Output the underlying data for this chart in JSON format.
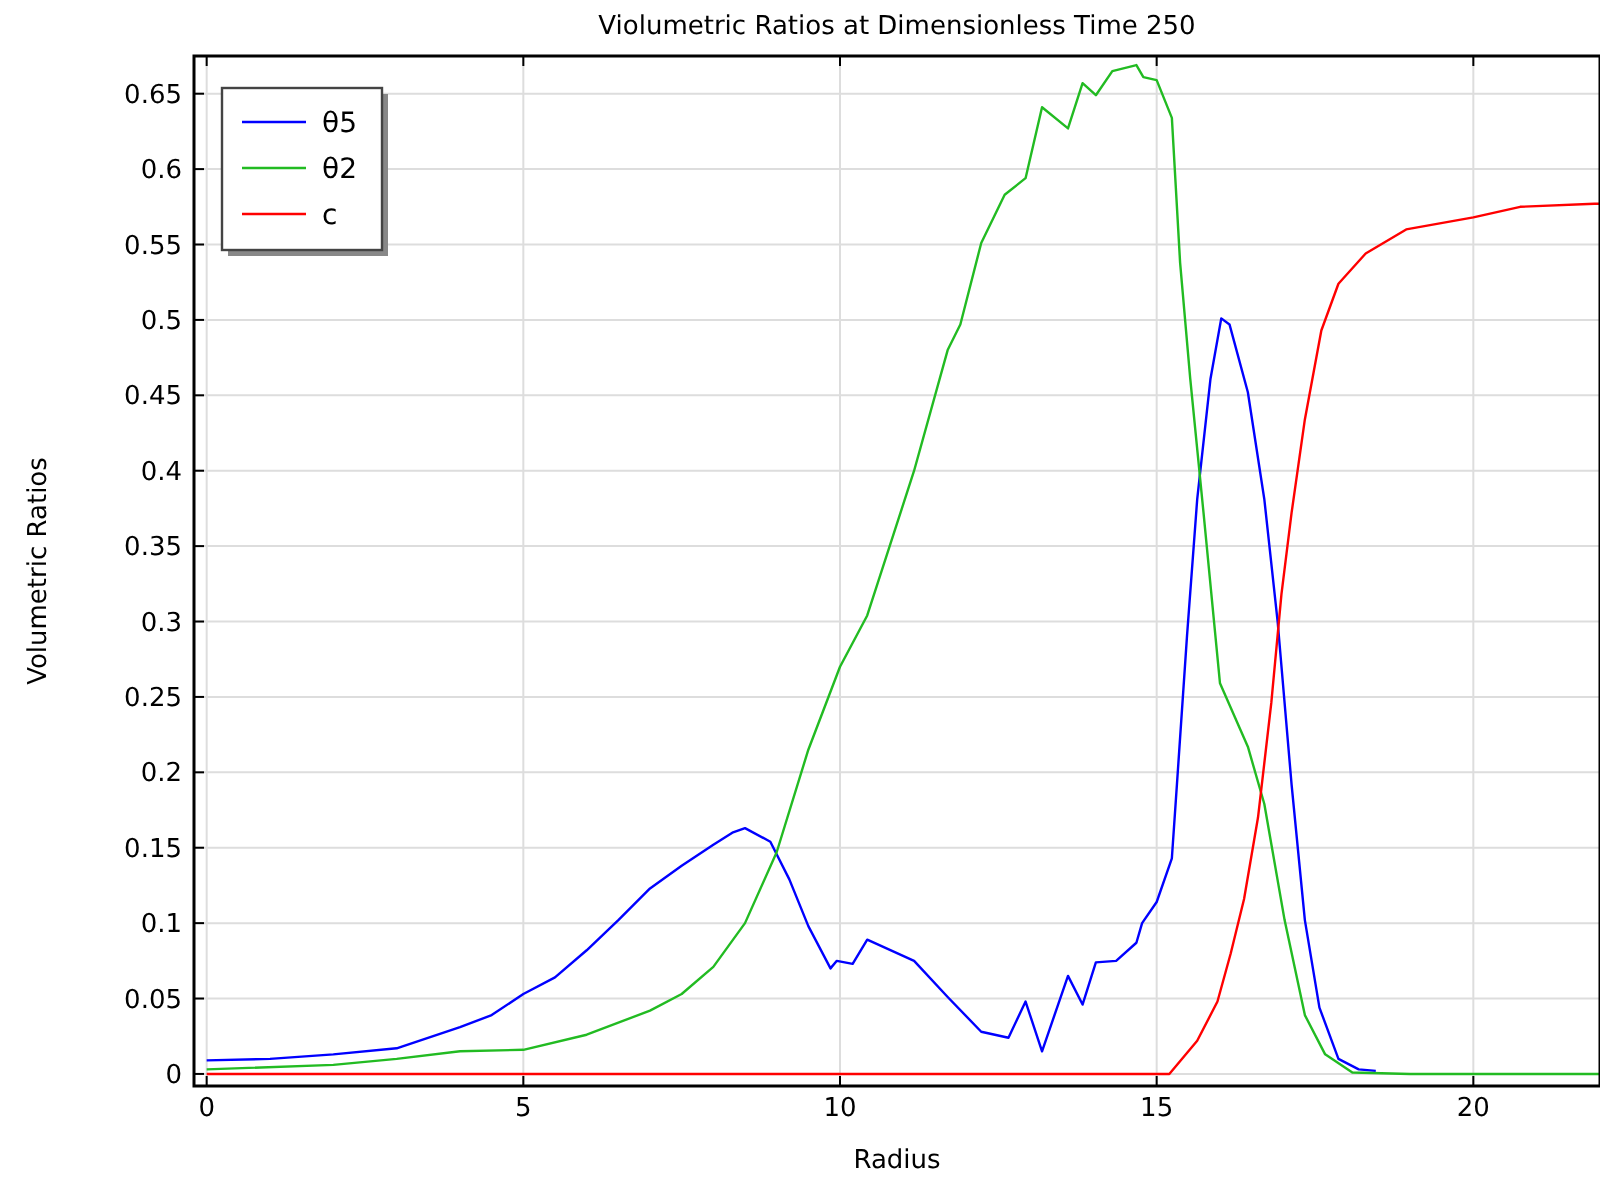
{
  "chart_data": {
    "type": "line",
    "title": "Violumetric Ratios at Dimensionless Time 250",
    "xlabel": "Radius",
    "ylabel": "Volumetric Ratios",
    "xlim": [
      -0.2,
      22
    ],
    "ylim": [
      -0.008,
      0.675
    ],
    "xticks": [
      0,
      5,
      10,
      15,
      20
    ],
    "yticks": [
      0,
      0.05,
      0.1,
      0.15,
      0.2,
      0.25,
      0.3,
      0.35,
      0.4,
      0.45,
      0.5,
      0.55,
      0.6,
      0.65
    ],
    "grid": true,
    "legend": "top left",
    "line_style": "solid",
    "marker": "none",
    "series": [
      {
        "name": "θ5",
        "color": "#0000ff",
        "x": [
          0,
          1,
          2,
          3,
          4,
          4.5,
          5,
          5.5,
          6,
          6.5,
          7,
          7.5,
          8,
          8.3,
          8.5,
          8.9,
          9.2,
          9.5,
          9.85,
          9.95,
          10.2,
          10.43,
          11.17,
          11.7,
          12.23,
          12.66,
          12.93,
          13.19,
          13.6,
          13.83,
          14.04,
          14.36,
          14.68,
          14.77,
          15,
          15.24,
          15.32,
          15.48,
          15.64,
          15.85,
          16.02,
          16.15,
          16.44,
          16.7,
          16.91,
          17.13,
          17.34,
          17.57,
          17.87,
          18.19,
          18.46
        ],
        "values": [
          0.009,
          0.01,
          0.013,
          0.017,
          0.031,
          0.039,
          0.053,
          0.064,
          0.082,
          0.102,
          0.123,
          0.138,
          0.152,
          0.16,
          0.163,
          0.154,
          0.129,
          0.098,
          0.07,
          0.075,
          0.073,
          0.089,
          0.075,
          0.051,
          0.028,
          0.024,
          0.048,
          0.015,
          0.065,
          0.046,
          0.074,
          0.075,
          0.087,
          0.1,
          0.114,
          0.143,
          0.192,
          0.291,
          0.381,
          0.461,
          0.501,
          0.497,
          0.452,
          0.381,
          0.3,
          0.192,
          0.102,
          0.044,
          0.01,
          0.003,
          0.002
        ]
      },
      {
        "name": "θ2",
        "color": "#22bb22",
        "x": [
          0,
          2,
          3,
          4,
          5,
          6,
          7,
          7.5,
          8,
          8.5,
          9,
          9.5,
          10,
          10.43,
          11.17,
          11.7,
          11.9,
          12.23,
          12.6,
          12.93,
          13.19,
          13.6,
          13.83,
          14.04,
          14.3,
          14.68,
          14.79,
          15,
          15.24,
          15.37,
          15.53,
          15.74,
          16,
          16.44,
          16.7,
          17.02,
          17.34,
          17.66,
          18.09,
          19,
          22
        ],
        "values": [
          0.003,
          0.006,
          0.01,
          0.015,
          0.016,
          0.026,
          0.042,
          0.053,
          0.071,
          0.1,
          0.147,
          0.215,
          0.27,
          0.304,
          0.4,
          0.48,
          0.497,
          0.551,
          0.583,
          0.594,
          0.641,
          0.627,
          0.657,
          0.649,
          0.665,
          0.669,
          0.661,
          0.659,
          0.634,
          0.538,
          0.461,
          0.372,
          0.259,
          0.217,
          0.179,
          0.102,
          0.039,
          0.013,
          0.001,
          0,
          0
        ]
      },
      {
        "name": "c",
        "color": "#ff0000",
        "x": [
          0,
          15.2,
          15.64,
          15.96,
          16.17,
          16.38,
          16.6,
          16.81,
          16.97,
          17.13,
          17.34,
          17.6,
          17.87,
          18.3,
          18.94,
          20,
          20.74,
          21.91,
          22
        ],
        "values": [
          0,
          0,
          0.022,
          0.048,
          0.08,
          0.116,
          0.17,
          0.246,
          0.318,
          0.372,
          0.434,
          0.493,
          0.524,
          0.544,
          0.56,
          0.568,
          0.575,
          0.577,
          0.577
        ]
      }
    ]
  }
}
